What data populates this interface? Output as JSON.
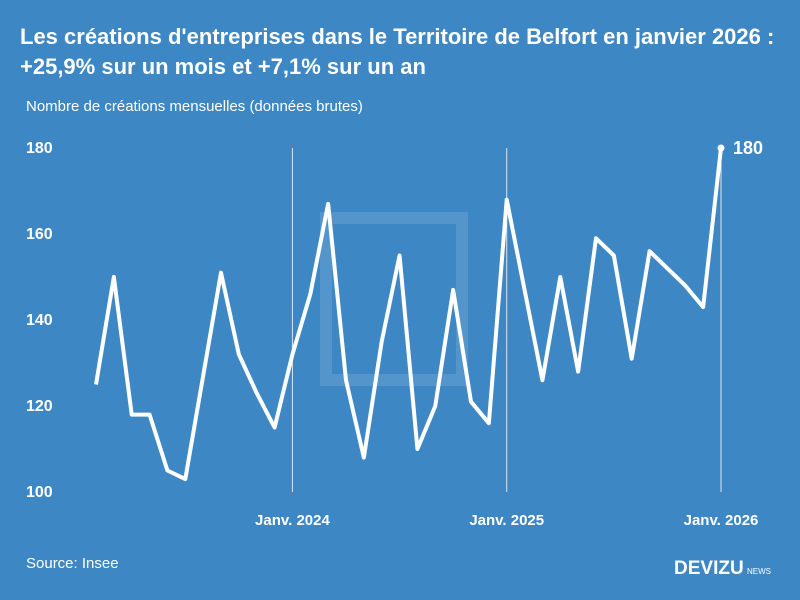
{
  "chart_data": {
    "type": "line",
    "title": "Les créations d'entreprises dans le Territoire de Belfort en janvier 2026 : +25,9% sur un mois et +7,1% sur un an",
    "subtitle": "Nombre de créations mensuelles (données brutes)",
    "source": "Source: Insee",
    "logo": "DEVIZU",
    "logo_sub": "NEWS",
    "categories": [
      null,
      null,
      null,
      null,
      null,
      null,
      null,
      null,
      null,
      null,
      null,
      "Janv. 2024",
      null,
      null,
      null,
      null,
      null,
      null,
      null,
      null,
      null,
      null,
      null,
      "Janv. 2025",
      null,
      null,
      null,
      null,
      null,
      null,
      null,
      null,
      null,
      null,
      null,
      "Janv. 2026"
    ],
    "series": [
      {
        "name": "Créations",
        "color": "#ffffff",
        "values": [
          125,
          150,
          118,
          118,
          105,
          103,
          127,
          151,
          132,
          123,
          115,
          132,
          146,
          167,
          126,
          108,
          135,
          155,
          110,
          120,
          147,
          121,
          116,
          168,
          147,
          126,
          150,
          128,
          159,
          155,
          131,
          156,
          152,
          148,
          143,
          180
        ]
      }
    ],
    "ylim": [
      100,
      180
    ],
    "yticks": [
      100,
      120,
      140,
      160,
      180
    ],
    "grid": false
  }
}
